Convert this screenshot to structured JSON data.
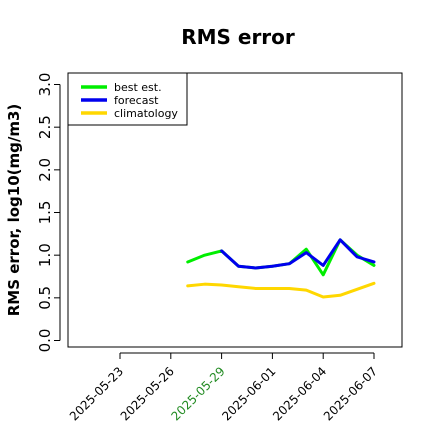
{
  "chart_data": {
    "type": "line",
    "title": "RMS error",
    "xlabel": "",
    "ylabel": "RMS error, log10(mg/m3)",
    "ylim": [
      0.0,
      3.0
    ],
    "yticks": [
      "0.0",
      "0.5",
      "1.0",
      "1.5",
      "2.0",
      "2.5",
      "3.0"
    ],
    "xticks": [
      "2025-05-23",
      "2025-05-26",
      "2025-05-29",
      "2025-06-01",
      "2025-06-04",
      "2025-06-07"
    ],
    "xtick_colors": [
      "#000000",
      "#000000",
      "#228b22",
      "#000000",
      "#000000",
      "#000000"
    ],
    "x": [
      "2025-05-27",
      "2025-05-28",
      "2025-05-29",
      "2025-05-30",
      "2025-05-31",
      "2025-06-01",
      "2025-06-02",
      "2025-06-03",
      "2025-06-04",
      "2025-06-05",
      "2025-06-06",
      "2025-06-07"
    ],
    "series": [
      {
        "name": "best est.",
        "color": "#00ee00",
        "values": [
          0.92,
          1.0,
          1.05,
          0.87,
          0.85,
          0.87,
          0.9,
          1.07,
          0.77,
          1.18,
          1.0,
          0.88
        ]
      },
      {
        "name": "forecast",
        "color": "#0000ee",
        "values": [
          null,
          null,
          1.05,
          0.87,
          0.85,
          0.87,
          0.9,
          1.03,
          0.88,
          1.18,
          0.98,
          0.92
        ]
      },
      {
        "name": "climatology",
        "color": "#ffd700",
        "values": [
          0.64,
          0.66,
          0.65,
          0.63,
          0.61,
          0.61,
          0.61,
          0.59,
          0.51,
          0.53,
          0.6,
          0.67
        ]
      }
    ],
    "grid": false,
    "legend_position": "top-left"
  }
}
